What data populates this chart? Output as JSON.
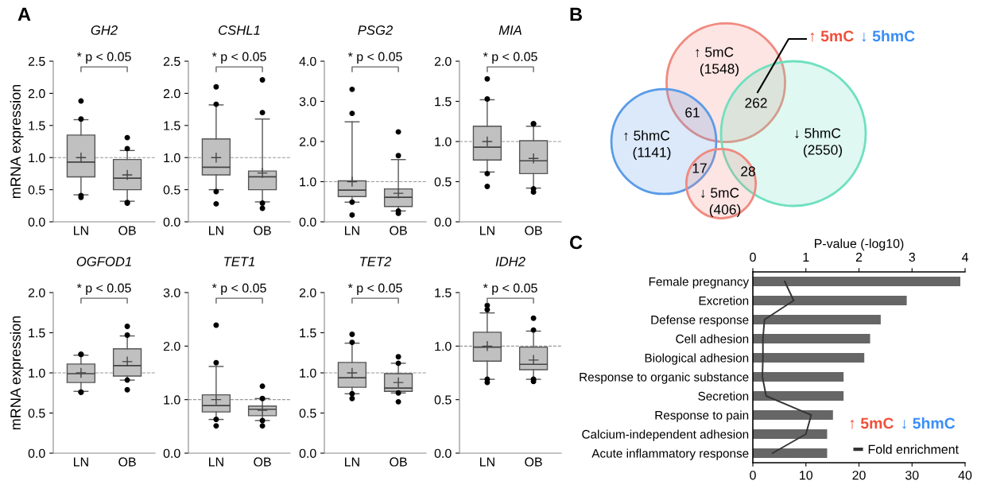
{
  "chart_data": [
    {
      "type": "box",
      "title": "GH2",
      "ylabel": "mRNA expression",
      "categories": [
        "LN",
        "OB"
      ],
      "ylim": [
        0,
        2.5
      ],
      "yticks": [
        {
          "value": 0,
          "label": "0.0"
        },
        {
          "value": 0.5,
          "label": "0.5"
        },
        {
          "value": 1,
          "label": "1.0"
        },
        {
          "value": 1.5,
          "label": "1.5"
        },
        {
          "value": 2,
          "label": "2.0"
        },
        {
          "value": 2.5,
          "label": "2.5"
        }
      ],
      "series": [
        {
          "color": "#c0c0c0",
          "boxes": [
            {
              "low": 0.42,
              "q1": 0.7,
              "median": 0.93,
              "q3": 1.35,
              "high": 1.59,
              "mean": 1.0,
              "outliers": [
                0.38,
                0.41,
                1.6,
                1.88
              ]
            },
            {
              "low": 0.32,
              "q1": 0.5,
              "median": 0.68,
              "q3": 0.97,
              "high": 1.11,
              "mean": 0.73,
              "outliers": [
                0.29,
                0.3,
                1.14,
                1.31
              ]
            }
          ]
        }
      ],
      "ref_lines": [
        {
          "axis": "y",
          "value": 1,
          "line_style": "dashed",
          "color": "#999999"
        }
      ],
      "annotations": [
        "A",
        "* p < 0.05"
      ]
    },
    {
      "type": "box",
      "title": "CSHL1",
      "categories": [
        "LN",
        "OB"
      ],
      "ylim": [
        0,
        2.5
      ],
      "yticks": [
        {
          "value": 0,
          "label": "0.0"
        },
        {
          "value": 0.5,
          "label": "0.5"
        },
        {
          "value": 1,
          "label": "1.0"
        },
        {
          "value": 1.5,
          "label": "1.5"
        },
        {
          "value": 2,
          "label": "2.0"
        },
        {
          "value": 2.5,
          "label": "2.5"
        }
      ],
      "series": [
        {
          "color": "#c0c0c0",
          "boxes": [
            {
              "low": 0.5,
              "q1": 0.73,
              "median": 0.85,
              "q3": 1.29,
              "high": 1.82,
              "mean": 1.0,
              "outliers": [
                0.28,
                0.47,
                1.83,
                2.1
              ]
            },
            {
              "low": 0.31,
              "q1": 0.5,
              "median": 0.7,
              "q3": 0.79,
              "high": 1.6,
              "mean": 0.76,
              "outliers": [
                0.21,
                0.29,
                1.7,
                2.21
              ]
            }
          ]
        }
      ],
      "ref_lines": [
        {
          "axis": "y",
          "value": 1,
          "line_style": "dashed",
          "color": "#999999"
        }
      ],
      "annotations": [
        "* p < 0.05"
      ]
    },
    {
      "type": "box",
      "title": "PSG2",
      "categories": [
        "LN",
        "OB"
      ],
      "ylim": [
        0,
        4
      ],
      "yticks": [
        {
          "value": 0,
          "label": "0.0"
        },
        {
          "value": 1,
          "label": "1.0"
        },
        {
          "value": 2,
          "label": "2.0"
        },
        {
          "value": 3,
          "label": "3.0"
        },
        {
          "value": 4,
          "label": "4.0"
        }
      ],
      "series": [
        {
          "color": "#c0c0c0",
          "boxes": [
            {
              "low": 0.49,
              "q1": 0.63,
              "median": 0.79,
              "q3": 1.02,
              "high": 2.49,
              "mean": 1.0,
              "outliers": [
                0.17,
                0.49,
                2.7,
                3.3
              ]
            },
            {
              "low": 0.27,
              "q1": 0.38,
              "median": 0.61,
              "q3": 0.82,
              "high": 1.55,
              "mean": 0.71,
              "outliers": [
                0.21,
                0.27,
                1.65,
                2.24
              ]
            }
          ]
        }
      ],
      "ref_lines": [
        {
          "axis": "y",
          "value": 1,
          "line_style": "dashed",
          "color": "#999999"
        }
      ],
      "annotations": [
        "* p < 0.05"
      ]
    },
    {
      "type": "box",
      "title": "MIA",
      "categories": [
        "LN",
        "OB"
      ],
      "ylim": [
        0,
        2
      ],
      "yticks": [
        {
          "value": 0,
          "label": "0.0"
        },
        {
          "value": 0.5,
          "label": "0.5"
        },
        {
          "value": 1,
          "label": "1.0"
        },
        {
          "value": 1.5,
          "label": "1.5"
        },
        {
          "value": 2,
          "label": "2.0"
        }
      ],
      "series": [
        {
          "color": "#c0c0c0",
          "boxes": [
            {
              "low": 0.62,
              "q1": 0.77,
              "median": 0.93,
              "q3": 1.19,
              "high": 1.52,
              "mean": 1.0,
              "outliers": [
                0.44,
                0.6,
                1.53,
                1.78
              ]
            },
            {
              "low": 0.42,
              "q1": 0.6,
              "median": 0.76,
              "q3": 1.01,
              "high": 1.19,
              "mean": 0.79,
              "outliers": [
                0.37,
                0.41,
                1.22,
                1.22
              ]
            }
          ]
        }
      ],
      "ref_lines": [
        {
          "axis": "y",
          "value": 1,
          "line_style": "dashed",
          "color": "#999999"
        }
      ],
      "annotations": [
        "* p < 0.05"
      ]
    },
    {
      "type": "box",
      "title": "OGFOD1",
      "ylabel": "mRNA expression",
      "categories": [
        "LN",
        "OB"
      ],
      "ylim": [
        0,
        2
      ],
      "yticks": [
        {
          "value": 0,
          "label": "0.0"
        },
        {
          "value": 0.5,
          "label": "0.5"
        },
        {
          "value": 1,
          "label": "1.0"
        },
        {
          "value": 1.5,
          "label": "1.5"
        },
        {
          "value": 2,
          "label": "2.0"
        }
      ],
      "series": [
        {
          "color": "#c0c0c0",
          "boxes": [
            {
              "low": 0.77,
              "q1": 0.88,
              "median": 0.99,
              "q3": 1.11,
              "high": 1.22,
              "mean": 1.0,
              "outliers": [
                0.76,
                0.76,
                1.23,
                1.23
              ]
            },
            {
              "low": 0.91,
              "q1": 0.96,
              "median": 1.09,
              "q3": 1.3,
              "high": 1.46,
              "mean": 1.14,
              "outliers": [
                0.79,
                0.91,
                1.47,
                1.58
              ]
            }
          ]
        }
      ],
      "ref_lines": [
        {
          "axis": "y",
          "value": 1,
          "line_style": "dashed",
          "color": "#999999"
        }
      ],
      "annotations": [
        "* p < 0.05"
      ]
    },
    {
      "type": "box",
      "title": "TET1",
      "categories": [
        "LN",
        "OB"
      ],
      "ylim": [
        0,
        3
      ],
      "yticks": [
        {
          "value": 0,
          "label": "0.0"
        },
        {
          "value": 1,
          "label": "1.0"
        },
        {
          "value": 2,
          "label": "2.0"
        },
        {
          "value": 3,
          "label": "3.0"
        }
      ],
      "series": [
        {
          "color": "#c0c0c0",
          "boxes": [
            {
              "low": 0.63,
              "q1": 0.77,
              "median": 0.89,
              "q3": 1.09,
              "high": 1.62,
              "mean": 1.0,
              "outliers": [
                0.51,
                0.63,
                1.69,
                2.39
              ]
            },
            {
              "low": 0.61,
              "q1": 0.7,
              "median": 0.82,
              "q3": 0.88,
              "high": 1.02,
              "mean": 0.8,
              "outliers": [
                0.51,
                0.61,
                1.02,
                1.25
              ]
            }
          ]
        }
      ],
      "ref_lines": [
        {
          "axis": "y",
          "value": 1,
          "line_style": "dashed",
          "color": "#999999"
        }
      ],
      "annotations": [
        "* p < 0.05"
      ]
    },
    {
      "type": "box",
      "title": "TET2",
      "categories": [
        "LN",
        "OB"
      ],
      "ylim": [
        0,
        2
      ],
      "yticks": [
        {
          "value": 0,
          "label": "0.0"
        },
        {
          "value": 0.5,
          "label": "0.5"
        },
        {
          "value": 1,
          "label": "1.0"
        },
        {
          "value": 1.5,
          "label": "1.5"
        },
        {
          "value": 2,
          "label": "2.0"
        }
      ],
      "series": [
        {
          "color": "#c0c0c0",
          "boxes": [
            {
              "low": 0.74,
              "q1": 0.82,
              "median": 0.94,
              "q3": 1.13,
              "high": 1.37,
              "mean": 1.0,
              "outliers": [
                0.68,
                0.74,
                1.38,
                1.48
              ]
            },
            {
              "low": 0.75,
              "q1": 0.77,
              "median": 0.81,
              "q3": 0.99,
              "high": 1.12,
              "mean": 0.88,
              "outliers": [
                0.64,
                0.75,
                1.12,
                1.2
              ]
            }
          ]
        }
      ],
      "ref_lines": [
        {
          "axis": "y",
          "value": 1,
          "line_style": "dashed",
          "color": "#999999"
        }
      ],
      "annotations": [
        "* p < 0.05"
      ]
    },
    {
      "type": "box",
      "title": "IDH2",
      "categories": [
        "LN",
        "OB"
      ],
      "ylim": [
        0,
        1.5
      ],
      "yticks": [
        {
          "value": 0,
          "label": "0.0"
        },
        {
          "value": 0.5,
          "label": "0.5"
        },
        {
          "value": 1,
          "label": "1.0"
        },
        {
          "value": 1.5,
          "label": "1.5"
        }
      ],
      "series": [
        {
          "color": "#c0c0c0",
          "boxes": [
            {
              "low": 0.69,
              "q1": 0.86,
              "median": 0.99,
              "q3": 1.13,
              "high": 1.31,
              "mean": 1.0,
              "outliers": [
                0.66,
                0.69,
                1.34,
                1.38
              ]
            },
            {
              "low": 0.69,
              "q1": 0.78,
              "median": 0.83,
              "q3": 0.99,
              "high": 1.14,
              "mean": 0.87,
              "outliers": [
                0.67,
                0.69,
                1.15,
                1.26
              ]
            }
          ]
        }
      ],
      "ref_lines": [
        {
          "axis": "y",
          "value": 1,
          "line_style": "dashed",
          "color": "#999999"
        }
      ],
      "annotations": [
        "* p < 0.05"
      ]
    },
    {
      "type": "other",
      "categories": [
        "↑ 5mC",
        "↑ 5hmC",
        "↓ 5hmC",
        "↓ 5mC"
      ],
      "values": [
        1548,
        1141,
        2550,
        406
      ],
      "value_labels": [
        "(1548)",
        "(1141)",
        "(2550)",
        "(406)"
      ],
      "colors": [
        "#f08a80",
        "#5a9be8",
        "#6ee0bf",
        "#f08a80"
      ],
      "annotations": [
        "B",
        "61",
        "262",
        "17",
        "28",
        "↑ 5mC",
        "↓ 5hmC"
      ]
    },
    {
      "type": "bar",
      "orientation": "horizontal",
      "categories": [
        "Female pregnancy",
        "Excretion",
        "Defense response",
        "Cell adhesion",
        "Biological adhesion",
        "Response to organic substance",
        "Secretion",
        "Response to pain",
        "Calcium-independent adhesion",
        "Acute inflammatory response"
      ],
      "series": [
        {
          "type": "bar",
          "axis": "x2",
          "color": "#666666",
          "values": [
            3.91,
            2.9,
            2.41,
            2.21,
            2.1,
            1.71,
            1.71,
            1.51,
            1.4,
            1.4
          ]
        },
        {
          "type": "line",
          "name": "Fold enrichment",
          "color": "#333333",
          "values": [
            6.0,
            7.7,
            2.2,
            1.9,
            1.9,
            1.8,
            2.5,
            11.0,
            10.0,
            3.7
          ]
        }
      ],
      "xlim": [
        0,
        40
      ],
      "xticks": [
        0,
        10,
        20,
        30,
        40
      ],
      "x2lim": [
        0,
        4
      ],
      "x2ticks": [
        0,
        1,
        2,
        3,
        4
      ],
      "x2label": "P-value (-log10)",
      "legend": "bottom right",
      "marker": "none",
      "line_style": "solid",
      "annotations": [
        "C",
        "↑ 5mC",
        "↓ 5hmC"
      ]
    }
  ]
}
